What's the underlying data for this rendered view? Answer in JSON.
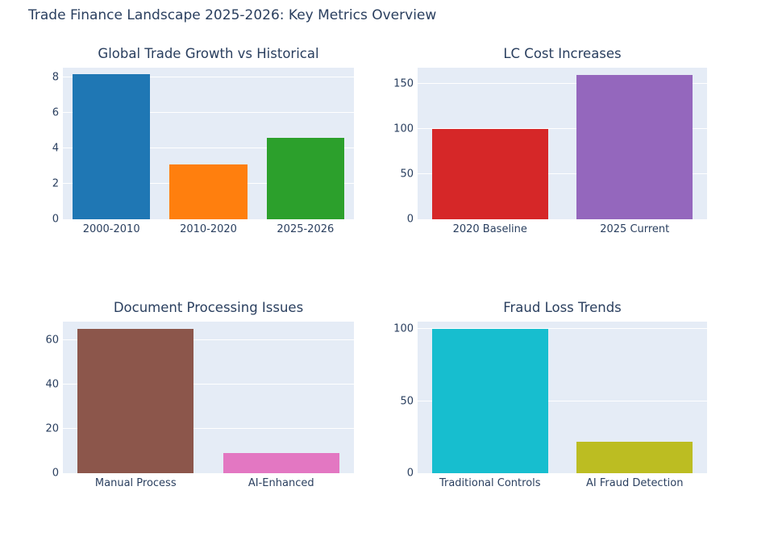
{
  "page": {
    "title": "Trade Finance Landscape 2025-2026: Key Metrics Overview",
    "background": "#ffffff",
    "text_color": "#2a3f5f",
    "plot_background": "#e5ecf6",
    "gridline_color": "#ffffff"
  },
  "chart_data": [
    {
      "type": "bar",
      "title": "Global Trade Growth vs Historical",
      "categories": [
        "2000-2010",
        "2010-2020",
        "2025-2026"
      ],
      "values": [
        8.2,
        3.1,
        4.6
      ],
      "bar_colors": [
        "#1f77b4",
        "#ff7f0e",
        "#2ca02c"
      ],
      "yticks": [
        0,
        2,
        4,
        6,
        8
      ],
      "ylim": [
        0,
        8.55
      ],
      "xlabel": "",
      "ylabel": "",
      "grid": true,
      "legend": "none"
    },
    {
      "type": "bar",
      "title": "LC Cost Increases",
      "categories": [
        "2020 Baseline",
        "2025 Current"
      ],
      "values": [
        100,
        160
      ],
      "bar_colors": [
        "#d62728",
        "#9467bd"
      ],
      "yticks": [
        0,
        50,
        100,
        150
      ],
      "ylim": [
        0,
        168
      ],
      "xlabel": "",
      "ylabel": "",
      "grid": true,
      "legend": "none"
    },
    {
      "type": "bar",
      "title": "Document Processing Issues",
      "categories": [
        "Manual Process",
        "AI-Enhanced"
      ],
      "values": [
        65,
        9
      ],
      "bar_colors": [
        "#8c564b",
        "#e377c2"
      ],
      "yticks": [
        0,
        20,
        40,
        60
      ],
      "ylim": [
        0,
        68.4
      ],
      "xlabel": "",
      "ylabel": "",
      "grid": true,
      "legend": "none"
    },
    {
      "type": "bar",
      "title": "Fraud Loss Trends",
      "categories": [
        "Traditional Controls",
        "AI Fraud Detection"
      ],
      "values": [
        100,
        22
      ],
      "bar_colors": [
        "#17becf",
        "#bcbd22"
      ],
      "yticks": [
        0,
        50,
        100
      ],
      "ylim": [
        0,
        105.3
      ],
      "xlabel": "",
      "ylabel": "",
      "grid": true,
      "legend": "none"
    }
  ]
}
